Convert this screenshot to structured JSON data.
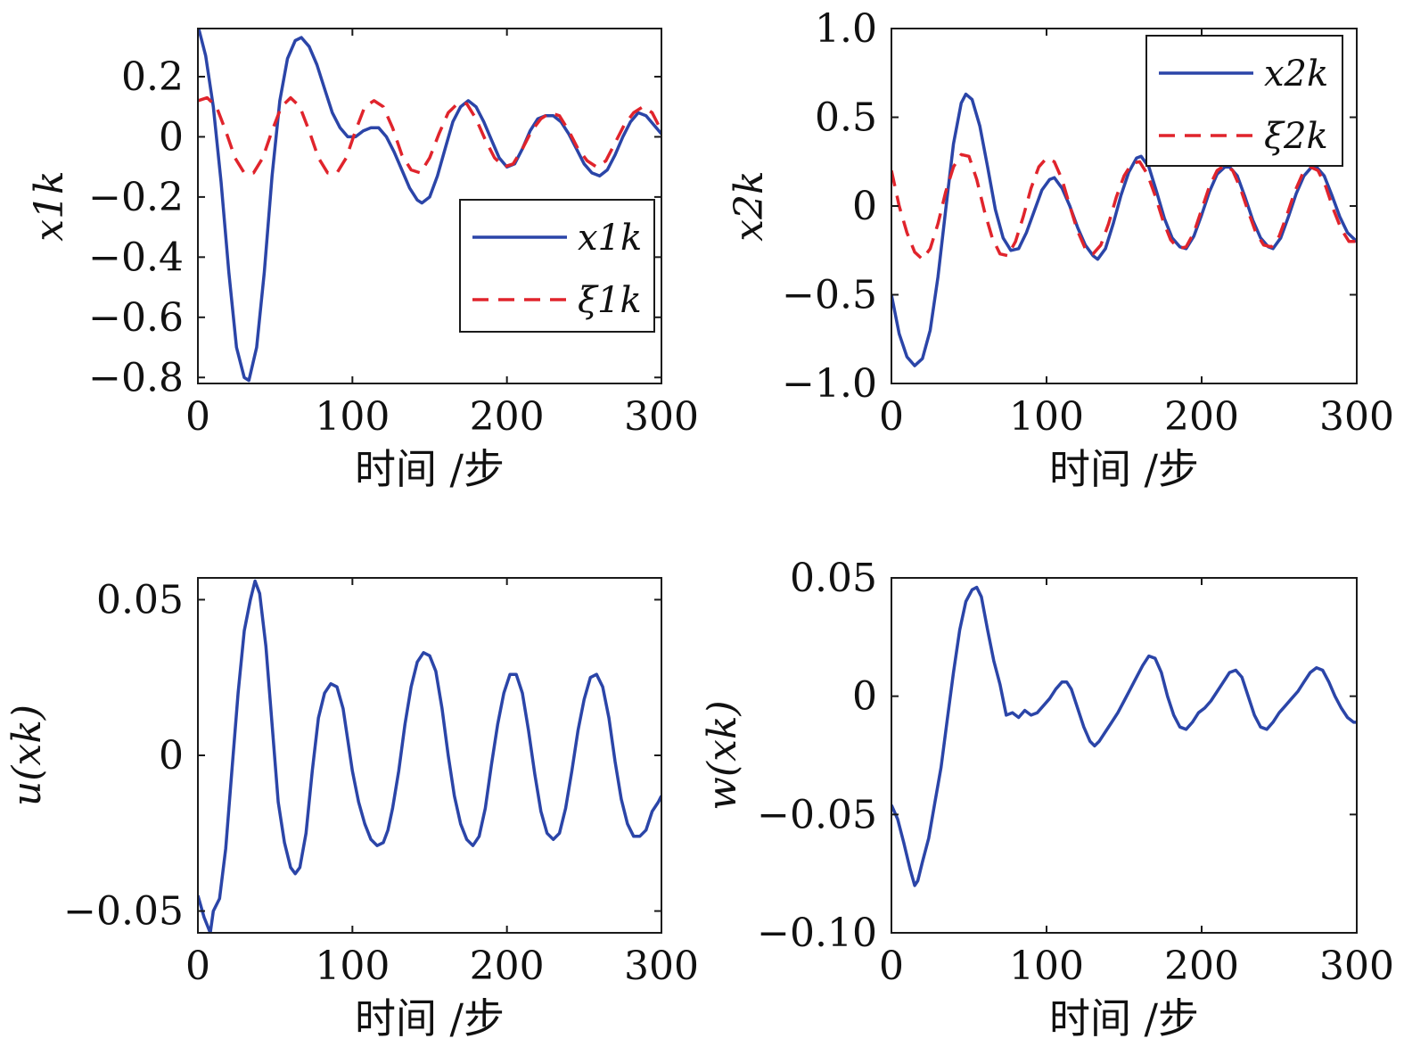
{
  "colors": {
    "series_solid": "#2b45a8",
    "series_dashed": "#e0242c",
    "axes": "#1a1a1a"
  },
  "chart_data": [
    {
      "type": "line",
      "xlabel": "时间 /步",
      "ylabel": "x1k",
      "xlim": [
        0,
        300
      ],
      "ylim": [
        -0.82,
        0.36
      ],
      "xticks": [
        "0",
        "100",
        "200",
        "300"
      ],
      "xtick_values": [
        0,
        100,
        200,
        300
      ],
      "yticks": [
        "0.2",
        "0",
        "−0.2",
        "−0.4",
        "−0.6",
        "−0.8"
      ],
      "ytick_values": [
        0.2,
        0,
        -0.2,
        -0.4,
        -0.6,
        -0.8
      ],
      "legend": "right-middle",
      "series": [
        {
          "name": "x1k",
          "style": "solid",
          "color": "#2b45a8",
          "x": [
            0,
            5,
            10,
            15,
            20,
            25,
            30,
            33,
            38,
            43,
            48,
            53,
            58,
            63,
            67,
            72,
            77,
            82,
            87,
            92,
            97,
            102,
            107,
            112,
            117,
            122,
            127,
            132,
            137,
            142,
            145,
            150,
            155,
            160,
            165,
            170,
            175,
            180,
            185,
            190,
            195,
            200,
            205,
            210,
            215,
            220,
            225,
            230,
            235,
            240,
            245,
            250,
            255,
            260,
            265,
            270,
            275,
            280,
            285,
            290,
            295,
            300
          ],
          "y": [
            0.37,
            0.27,
            0.1,
            -0.15,
            -0.45,
            -0.7,
            -0.8,
            -0.81,
            -0.7,
            -0.45,
            -0.13,
            0.12,
            0.26,
            0.32,
            0.33,
            0.3,
            0.24,
            0.16,
            0.08,
            0.03,
            0.0,
            0.0,
            0.02,
            0.03,
            0.03,
            0.0,
            -0.05,
            -0.11,
            -0.17,
            -0.21,
            -0.22,
            -0.2,
            -0.13,
            -0.04,
            0.05,
            0.1,
            0.12,
            0.1,
            0.05,
            -0.01,
            -0.07,
            -0.1,
            -0.09,
            -0.04,
            0.02,
            0.06,
            0.07,
            0.07,
            0.05,
            0.01,
            -0.04,
            -0.09,
            -0.12,
            -0.13,
            -0.11,
            -0.06,
            0.0,
            0.05,
            0.08,
            0.07,
            0.04,
            0.01
          ]
        },
        {
          "name": "ξ1k",
          "style": "dashed",
          "color": "#e0242c",
          "x": [
            0,
            6,
            12,
            18,
            24,
            30,
            36,
            42,
            48,
            54,
            60,
            66,
            72,
            78,
            84,
            90,
            96,
            102,
            108,
            114,
            120,
            126,
            132,
            138,
            144,
            150,
            156,
            162,
            168,
            174,
            180,
            186,
            192,
            198,
            204,
            210,
            216,
            222,
            228,
            234,
            240,
            246,
            252,
            258,
            264,
            270,
            276,
            282,
            288,
            294,
            300
          ],
          "y": [
            0.12,
            0.13,
            0.1,
            0.02,
            -0.07,
            -0.12,
            -0.12,
            -0.07,
            0.02,
            0.1,
            0.13,
            0.1,
            0.02,
            -0.07,
            -0.12,
            -0.12,
            -0.07,
            0.02,
            0.1,
            0.12,
            0.1,
            0.03,
            -0.06,
            -0.11,
            -0.12,
            -0.07,
            0.01,
            0.08,
            0.11,
            0.11,
            0.06,
            -0.01,
            -0.07,
            -0.1,
            -0.09,
            -0.04,
            0.02,
            0.06,
            0.08,
            0.07,
            0.02,
            -0.04,
            -0.08,
            -0.1,
            -0.08,
            -0.02,
            0.04,
            0.08,
            0.1,
            0.08,
            0.02
          ]
        }
      ]
    },
    {
      "type": "line",
      "xlabel": "时间 /步",
      "ylabel": "x2k",
      "xlim": [
        0,
        300
      ],
      "ylim": [
        -1.0,
        1.0
      ],
      "xticks": [
        "0",
        "100",
        "200",
        "300"
      ],
      "xtick_values": [
        0,
        100,
        200,
        300
      ],
      "yticks": [
        "1.0",
        "0.5",
        "0",
        "−0.5",
        "−1.0"
      ],
      "ytick_values": [
        1.0,
        0.5,
        0,
        -0.5,
        -1.0
      ],
      "legend": "top-right",
      "series": [
        {
          "name": "x2k",
          "style": "solid",
          "color": "#2b45a8",
          "x": [
            0,
            5,
            10,
            15,
            20,
            25,
            30,
            35,
            40,
            45,
            48,
            52,
            57,
            62,
            67,
            72,
            77,
            82,
            87,
            92,
            97,
            102,
            105,
            110,
            115,
            120,
            125,
            130,
            133,
            138,
            143,
            148,
            153,
            158,
            161,
            166,
            171,
            176,
            181,
            186,
            190,
            195,
            200,
            205,
            210,
            215,
            218,
            223,
            228,
            233,
            238,
            243,
            246,
            251,
            256,
            261,
            266,
            271,
            274,
            279,
            284,
            289,
            294,
            300
          ],
          "y": [
            -0.5,
            -0.72,
            -0.85,
            -0.9,
            -0.86,
            -0.7,
            -0.4,
            -0.02,
            0.35,
            0.58,
            0.63,
            0.6,
            0.45,
            0.22,
            -0.02,
            -0.18,
            -0.25,
            -0.24,
            -0.15,
            -0.03,
            0.09,
            0.15,
            0.16,
            0.1,
            0.0,
            -0.12,
            -0.22,
            -0.28,
            -0.3,
            -0.24,
            -0.1,
            0.06,
            0.19,
            0.27,
            0.28,
            0.22,
            0.08,
            -0.07,
            -0.18,
            -0.23,
            -0.24,
            -0.17,
            -0.05,
            0.08,
            0.18,
            0.22,
            0.22,
            0.17,
            0.05,
            -0.08,
            -0.18,
            -0.23,
            -0.24,
            -0.18,
            -0.06,
            0.07,
            0.17,
            0.22,
            0.22,
            0.17,
            0.06,
            -0.06,
            -0.15,
            -0.2
          ]
        },
        {
          "name": "ξ2k",
          "style": "dashed",
          "color": "#e0242c",
          "x": [
            0,
            5,
            10,
            15,
            20,
            25,
            30,
            35,
            40,
            45,
            50,
            55,
            60,
            65,
            70,
            75,
            80,
            85,
            90,
            95,
            100,
            105,
            110,
            115,
            120,
            125,
            130,
            135,
            140,
            145,
            150,
            155,
            160,
            165,
            170,
            175,
            180,
            185,
            190,
            195,
            200,
            205,
            210,
            215,
            220,
            225,
            230,
            235,
            240,
            245,
            250,
            255,
            260,
            265,
            270,
            275,
            280,
            285,
            290,
            295,
            300
          ],
          "y": [
            0.2,
            0.0,
            -0.15,
            -0.26,
            -0.3,
            -0.24,
            -0.1,
            0.08,
            0.22,
            0.29,
            0.28,
            0.15,
            -0.03,
            -0.18,
            -0.27,
            -0.28,
            -0.2,
            -0.06,
            0.1,
            0.22,
            0.27,
            0.25,
            0.15,
            0.0,
            -0.14,
            -0.24,
            -0.27,
            -0.22,
            -0.1,
            0.05,
            0.17,
            0.24,
            0.25,
            0.18,
            0.06,
            -0.08,
            -0.19,
            -0.24,
            -0.23,
            -0.15,
            -0.02,
            0.11,
            0.2,
            0.23,
            0.2,
            0.1,
            -0.03,
            -0.15,
            -0.22,
            -0.23,
            -0.17,
            -0.05,
            0.08,
            0.18,
            0.22,
            0.2,
            0.11,
            -0.02,
            -0.13,
            -0.2,
            -0.2
          ]
        }
      ]
    },
    {
      "type": "line",
      "xlabel": "时间 /步",
      "ylabel": "u(xk)",
      "xlim": [
        0,
        300
      ],
      "ylim": [
        -0.057,
        0.057
      ],
      "xticks": [
        "0",
        "100",
        "200",
        "300"
      ],
      "xtick_values": [
        0,
        100,
        200,
        300
      ],
      "yticks": [
        "0.05",
        "0",
        "−0.05"
      ],
      "ytick_values": [
        0.05,
        0,
        -0.05
      ],
      "series": [
        {
          "name": "",
          "style": "solid",
          "color": "#2b45a8",
          "x": [
            0,
            4,
            8,
            10,
            14,
            18,
            22,
            26,
            30,
            34,
            37,
            40,
            44,
            48,
            52,
            56,
            60,
            63,
            66,
            70,
            74,
            78,
            82,
            86,
            90,
            94,
            97,
            100,
            104,
            108,
            112,
            116,
            120,
            123,
            126,
            130,
            134,
            138,
            142,
            146,
            150,
            154,
            158,
            162,
            166,
            170,
            174,
            178,
            182,
            186,
            190,
            194,
            198,
            202,
            206,
            210,
            214,
            218,
            222,
            226,
            230,
            234,
            238,
            242,
            246,
            250,
            254,
            258,
            262,
            266,
            270,
            274,
            278,
            282,
            286,
            290,
            294,
            298,
            300
          ],
          "y": [
            -0.045,
            -0.052,
            -0.057,
            -0.05,
            -0.046,
            -0.03,
            -0.005,
            0.02,
            0.04,
            0.05,
            0.056,
            0.052,
            0.035,
            0.01,
            -0.015,
            -0.028,
            -0.036,
            -0.038,
            -0.036,
            -0.025,
            -0.005,
            0.012,
            0.02,
            0.023,
            0.022,
            0.015,
            0.005,
            -0.005,
            -0.015,
            -0.022,
            -0.027,
            -0.029,
            -0.028,
            -0.024,
            -0.017,
            -0.005,
            0.01,
            0.022,
            0.03,
            0.033,
            0.032,
            0.027,
            0.015,
            0.0,
            -0.013,
            -0.022,
            -0.027,
            -0.029,
            -0.026,
            -0.017,
            -0.003,
            0.01,
            0.02,
            0.026,
            0.026,
            0.02,
            0.008,
            -0.006,
            -0.018,
            -0.025,
            -0.027,
            -0.025,
            -0.017,
            -0.005,
            0.008,
            0.018,
            0.025,
            0.026,
            0.022,
            0.012,
            -0.002,
            -0.014,
            -0.022,
            -0.026,
            -0.026,
            -0.024,
            -0.018,
            -0.015,
            -0.013
          ]
        }
      ]
    },
    {
      "type": "line",
      "xlabel": "时间 /步",
      "ylabel": "w(xk)",
      "xlim": [
        0,
        300
      ],
      "ylim": [
        -0.1,
        0.05
      ],
      "xticks": [
        "0",
        "100",
        "200",
        "300"
      ],
      "xtick_values": [
        0,
        100,
        200,
        300
      ],
      "yticks": [
        "0.05",
        "0",
        "−0.05",
        "−0.10"
      ],
      "ytick_values": [
        0.05,
        0,
        -0.05,
        -0.1
      ],
      "series": [
        {
          "name": "",
          "style": "solid",
          "color": "#2b45a8",
          "x": [
            0,
            4,
            8,
            12,
            15,
            17,
            20,
            24,
            28,
            32,
            36,
            40,
            44,
            48,
            52,
            55,
            58,
            62,
            66,
            70,
            74,
            78,
            82,
            86,
            90,
            94,
            98,
            102,
            106,
            110,
            113,
            116,
            120,
            124,
            128,
            131,
            134,
            138,
            142,
            146,
            150,
            154,
            158,
            162,
            166,
            170,
            174,
            178,
            182,
            186,
            190,
            194,
            198,
            202,
            206,
            210,
            214,
            218,
            222,
            226,
            230,
            234,
            238,
            242,
            246,
            250,
            254,
            258,
            262,
            266,
            270,
            274,
            278,
            282,
            286,
            290,
            294,
            298,
            300
          ],
          "y": [
            -0.046,
            -0.052,
            -0.062,
            -0.073,
            -0.08,
            -0.078,
            -0.07,
            -0.06,
            -0.045,
            -0.03,
            -0.01,
            0.01,
            0.028,
            0.04,
            0.045,
            0.046,
            0.042,
            0.028,
            0.015,
            0.005,
            -0.008,
            -0.007,
            -0.009,
            -0.006,
            -0.008,
            -0.007,
            -0.004,
            -0.001,
            0.003,
            0.006,
            0.006,
            0.003,
            -0.005,
            -0.013,
            -0.019,
            -0.021,
            -0.019,
            -0.015,
            -0.011,
            -0.007,
            -0.002,
            0.003,
            0.008,
            0.013,
            0.017,
            0.016,
            0.01,
            0.0,
            -0.008,
            -0.013,
            -0.014,
            -0.011,
            -0.007,
            -0.005,
            -0.002,
            0.002,
            0.006,
            0.01,
            0.011,
            0.008,
            0.0,
            -0.008,
            -0.013,
            -0.014,
            -0.011,
            -0.007,
            -0.004,
            -0.001,
            0.002,
            0.006,
            0.01,
            0.012,
            0.011,
            0.006,
            0.0,
            -0.005,
            -0.009,
            -0.011,
            -0.011
          ]
        }
      ]
    }
  ]
}
